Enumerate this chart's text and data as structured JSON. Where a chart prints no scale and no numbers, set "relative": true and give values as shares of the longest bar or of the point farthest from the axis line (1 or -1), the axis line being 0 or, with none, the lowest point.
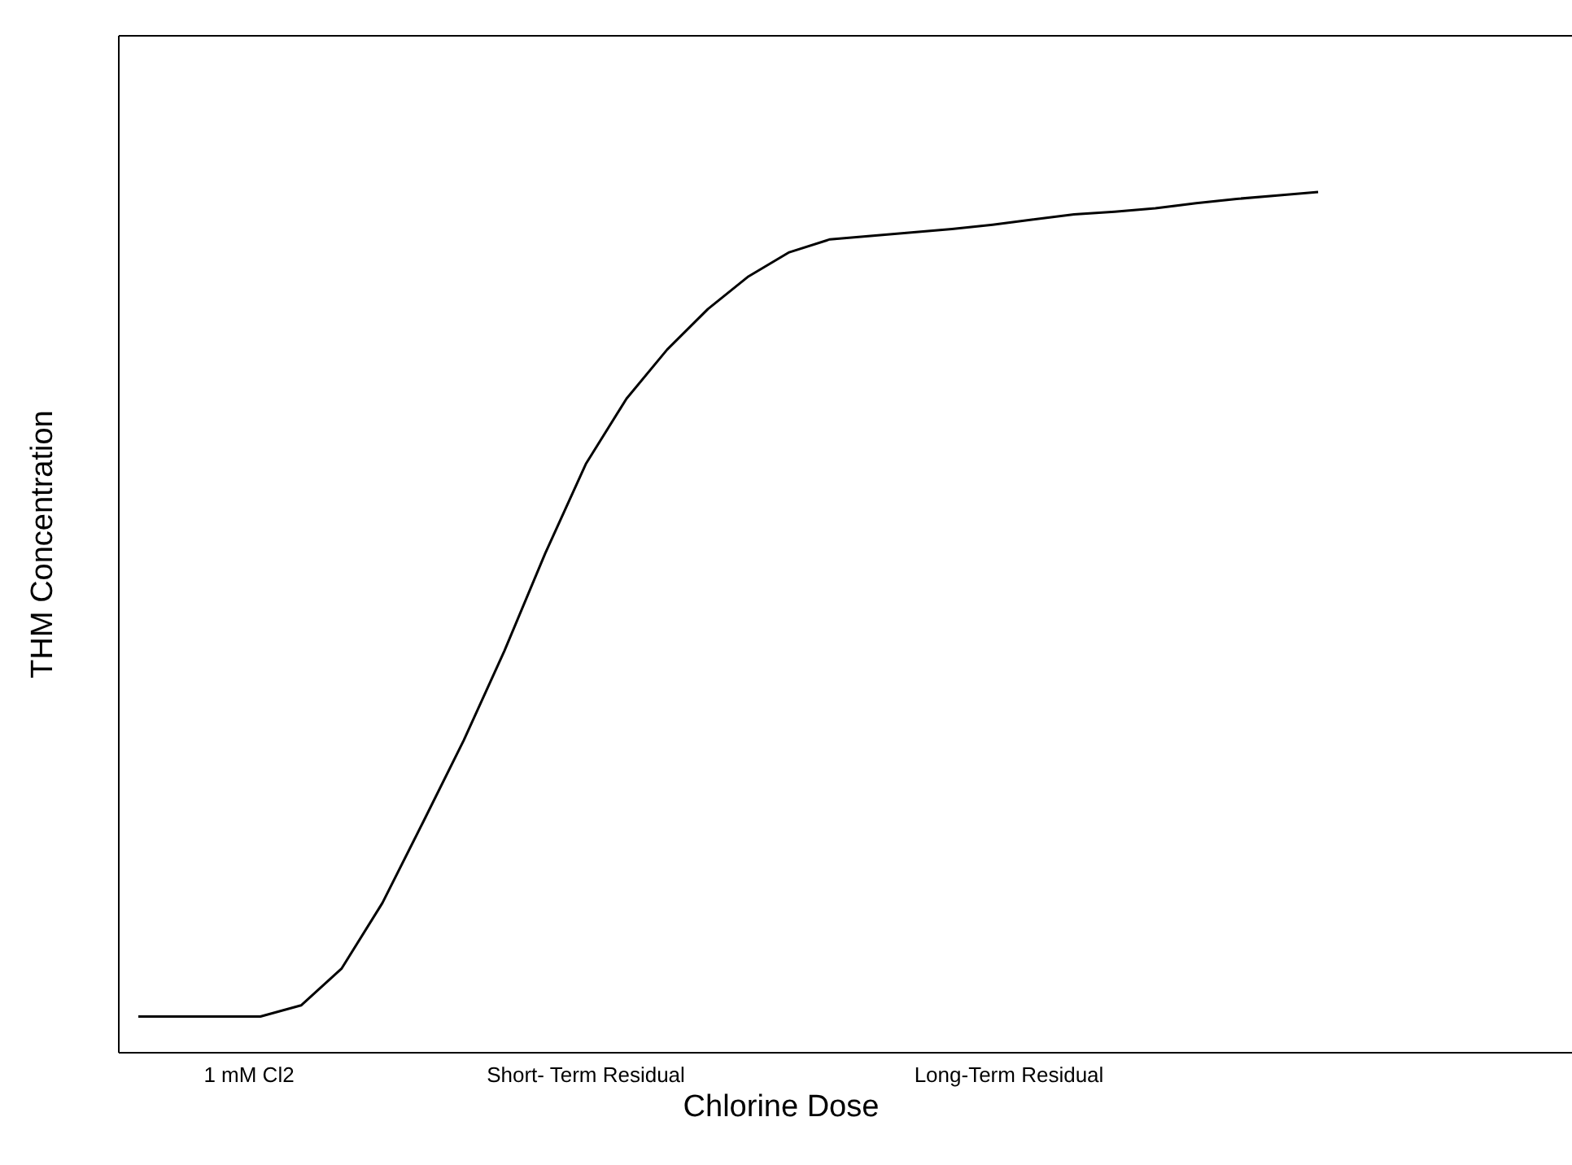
{
  "chart_data": {
    "type": "line",
    "relative": true,
    "xlabel": "Chlorine Dose",
    "ylabel": "THM Concentration",
    "categories": [
      null,
      null,
      null,
      null,
      null,
      null,
      null,
      null,
      null,
      null,
      null,
      null,
      null,
      null,
      null,
      null,
      null,
      null,
      null,
      null,
      null,
      null,
      null,
      null,
      null,
      null,
      null,
      null,
      null,
      null
    ],
    "series": [
      {
        "color": "#000000",
        "values": [
          0.042,
          0.042,
          0.042,
          0.042,
          0.055,
          0.098,
          0.174,
          0.268,
          0.363,
          0.467,
          0.58,
          0.684,
          0.76,
          0.817,
          0.864,
          0.902,
          0.93,
          0.945,
          0.949,
          0.953,
          0.957,
          0.962,
          0.968,
          0.974,
          0.977,
          0.981,
          0.987,
          0.992,
          0.996,
          1
        ]
      }
    ],
    "annotations": [
      "1 mM Cl2",
      "Short- Term Residual",
      "Long-Term Residual"
    ],
    "marker": "none",
    "line_style": "solid"
  }
}
